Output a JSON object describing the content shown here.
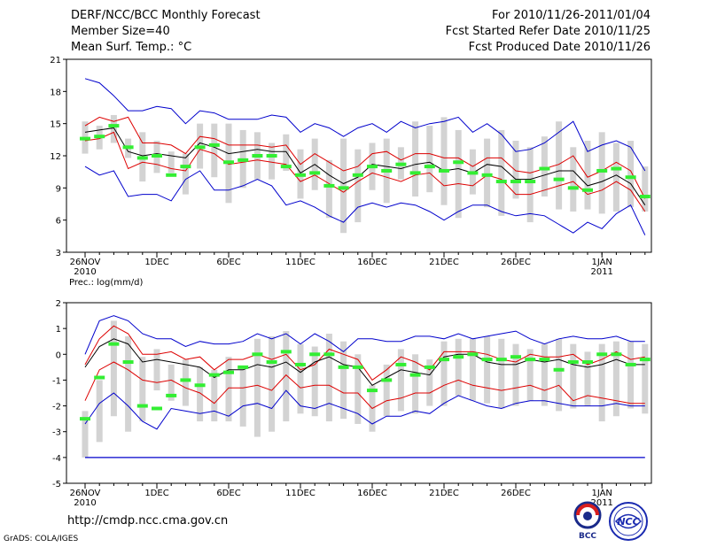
{
  "header": {
    "title": "DERF/NCC/BCC Monthly Forecast",
    "member_size": "Member Size=40",
    "variable": "Mean Surf. Temp.: °C",
    "forecast_period": "For 2010/11/26-2011/01/04",
    "refer_date": "Fcst Started Refer Date 2010/11/25",
    "produced_date": "Fcst Produced Date 2010/11/26"
  },
  "footer": {
    "url": "http://cmdp.ncc.cma.gov.cn",
    "credit": "GrADS: COLA/IGES",
    "logo_bcc": "BCC",
    "logo_ncc": "NCC"
  },
  "colors": {
    "band": "#d3d3d3",
    "mean": "#000000",
    "envelope_outer": "#0000cc",
    "envelope_inner": "#dd0000",
    "median": "#33ee33"
  },
  "chart_data": [
    {
      "type": "line",
      "panel": "temperature",
      "title": "",
      "ylabel": "",
      "ylim": [
        3,
        21
      ],
      "yticks": [
        3,
        6,
        9,
        12,
        15,
        18,
        21
      ],
      "xtick_labels": [
        "26NOV",
        "1DEC",
        "6DEC",
        "11DEC",
        "16DEC",
        "21DEC",
        "26DEC",
        "1JAN"
      ],
      "xtick_days": [
        0,
        5,
        10,
        15,
        20,
        25,
        30,
        36
      ],
      "year_labels": [
        {
          "day": 0,
          "label": "2010"
        },
        {
          "day": 36,
          "label": "2011"
        }
      ],
      "days": [
        0,
        1,
        2,
        3,
        4,
        5,
        6,
        7,
        8,
        9,
        10,
        11,
        12,
        13,
        14,
        15,
        16,
        17,
        18,
        19,
        20,
        21,
        22,
        23,
        24,
        25,
        26,
        27,
        28,
        29,
        30,
        31,
        32,
        33,
        34,
        35,
        36,
        37,
        38,
        39
      ],
      "series": [
        {
          "name": "max",
          "values": [
            19.2,
            18.8,
            17.6,
            16.2,
            16.2,
            16.6,
            16.4,
            15.0,
            16.2,
            16.0,
            15.4,
            15.4,
            15.4,
            15.8,
            15.6,
            14.2,
            15.0,
            14.6,
            13.8,
            14.6,
            15.0,
            14.2,
            15.2,
            14.6,
            15.0,
            15.2,
            15.6,
            14.2,
            15.0,
            14.0,
            12.4,
            12.6,
            13.2,
            14.2,
            15.2,
            12.4,
            13.0,
            13.4,
            12.8,
            10.6
          ]
        },
        {
          "name": "upper",
          "values": [
            14.8,
            15.6,
            15.2,
            15.6,
            13.2,
            13.2,
            13.0,
            12.2,
            13.8,
            13.6,
            13.0,
            13.0,
            13.0,
            12.8,
            13.0,
            11.2,
            12.2,
            11.4,
            10.6,
            11.0,
            12.2,
            12.4,
            11.6,
            12.2,
            12.2,
            11.8,
            11.8,
            11.0,
            11.8,
            11.8,
            10.6,
            10.4,
            10.8,
            11.2,
            12.0,
            10.0,
            10.6,
            11.4,
            10.6,
            8.0
          ]
        },
        {
          "name": "mean",
          "values": [
            14.2,
            14.4,
            14.6,
            12.4,
            12.0,
            12.2,
            12.0,
            11.8,
            13.2,
            12.8,
            12.2,
            12.4,
            12.6,
            12.4,
            12.4,
            10.4,
            11.2,
            10.2,
            9.4,
            10.0,
            11.2,
            11.0,
            10.8,
            11.2,
            11.4,
            10.6,
            10.8,
            10.4,
            11.2,
            11.0,
            9.8,
            9.8,
            10.2,
            10.6,
            10.6,
            9.2,
            9.6,
            10.2,
            9.4,
            7.4
          ]
        },
        {
          "name": "lower",
          "values": [
            13.4,
            13.6,
            14.2,
            10.8,
            11.4,
            11.2,
            10.8,
            10.6,
            12.6,
            12.2,
            11.2,
            11.4,
            11.6,
            11.4,
            11.2,
            9.6,
            10.2,
            9.4,
            8.6,
            9.6,
            10.4,
            10.0,
            9.6,
            10.2,
            10.4,
            9.2,
            9.4,
            9.2,
            10.2,
            9.8,
            8.4,
            8.4,
            8.8,
            9.2,
            9.6,
            8.4,
            8.8,
            9.6,
            8.8,
            6.8
          ]
        },
        {
          "name": "min",
          "values": [
            11.0,
            10.2,
            10.6,
            8.2,
            8.4,
            8.4,
            7.8,
            9.8,
            10.6,
            8.8,
            8.8,
            9.2,
            9.8,
            9.2,
            7.4,
            7.8,
            7.2,
            6.4,
            5.8,
            7.2,
            7.6,
            7.2,
            7.6,
            7.4,
            6.8,
            6.0,
            6.8,
            7.4,
            7.4,
            6.8,
            6.4,
            6.6,
            6.4,
            5.6,
            4.8,
            5.8,
            5.2,
            6.6,
            7.4,
            4.6
          ]
        }
      ],
      "bands": {
        "label": "member spread (grey bars)",
        "low": [
          12.2,
          12.6,
          13.2,
          11.8,
          9.6,
          10.4,
          10.4,
          8.4,
          10.8,
          10.0,
          7.6,
          9.0,
          9.8,
          9.8,
          10.6,
          8.0,
          8.8,
          6.2,
          4.8,
          5.8,
          8.8,
          7.6,
          9.8,
          8.2,
          8.6,
          7.4,
          6.2,
          8.4,
          7.2,
          6.4,
          8.0,
          5.8,
          8.2,
          7.0,
          6.8,
          7.0,
          6.6,
          6.8,
          7.2,
          6.8
        ],
        "high": [
          15.2,
          14.8,
          15.8,
          13.6,
          14.2,
          13.4,
          12.4,
          12.2,
          15.0,
          15.0,
          15.0,
          14.4,
          14.2,
          13.2,
          14.0,
          12.6,
          13.6,
          11.6,
          13.6,
          12.6,
          13.2,
          13.6,
          12.8,
          15.2,
          14.8,
          15.6,
          14.4,
          12.6,
          13.6,
          14.4,
          13.4,
          12.8,
          13.8,
          15.2,
          12.8,
          13.4,
          14.2,
          13.2,
          13.4,
          11.0
        ]
      },
      "medians": [
        13.6,
        13.8,
        14.8,
        12.8,
        11.8,
        12.0,
        10.2,
        11.0,
        12.8,
        13.0,
        11.4,
        11.6,
        12.0,
        12.0,
        11.0,
        10.2,
        10.4,
        9.2,
        9.0,
        10.2,
        11.0,
        10.6,
        11.2,
        10.4,
        11.0,
        10.6,
        11.4,
        10.4,
        10.2,
        9.6,
        9.6,
        9.6,
        10.8,
        9.8,
        9.0,
        8.8,
        10.6,
        10.8,
        10.0,
        8.2
      ]
    },
    {
      "type": "line",
      "panel": "precipitation",
      "title": "Prec.: log(mm/d)",
      "ylabel": "",
      "ylim": [
        -5,
        2
      ],
      "yticks": [
        -5,
        -4,
        -3,
        -2,
        -1,
        0,
        1,
        2
      ],
      "xtick_labels": [
        "26NOV",
        "1DEC",
        "6DEC",
        "11DEC",
        "16DEC",
        "21DEC",
        "26DEC",
        "1JAN"
      ],
      "xtick_days": [
        0,
        5,
        10,
        15,
        20,
        25,
        30,
        36
      ],
      "year_labels": [
        {
          "day": 0,
          "label": "2010"
        },
        {
          "day": 36,
          "label": "2011"
        }
      ],
      "days": [
        0,
        1,
        2,
        3,
        4,
        5,
        6,
        7,
        8,
        9,
        10,
        11,
        12,
        13,
        14,
        15,
        16,
        17,
        18,
        19,
        20,
        21,
        22,
        23,
        24,
        25,
        26,
        27,
        28,
        29,
        30,
        31,
        32,
        33,
        34,
        35,
        36,
        37,
        38,
        39
      ],
      "baseline": -4,
      "series": [
        {
          "name": "max",
          "values": [
            0.0,
            1.3,
            1.5,
            1.3,
            0.8,
            0.6,
            0.6,
            0.3,
            0.5,
            0.4,
            0.4,
            0.5,
            0.8,
            0.6,
            0.8,
            0.4,
            0.8,
            0.5,
            0.1,
            0.6,
            0.6,
            0.5,
            0.5,
            0.7,
            0.7,
            0.6,
            0.8,
            0.6,
            0.7,
            0.8,
            0.9,
            0.6,
            0.4,
            0.6,
            0.7,
            0.6,
            0.6,
            0.7,
            0.5,
            0.5
          ]
        },
        {
          "name": "upper",
          "values": [
            -0.4,
            0.6,
            1.1,
            0.8,
            0.0,
            0.0,
            0.1,
            -0.2,
            -0.1,
            -0.6,
            -0.2,
            -0.2,
            0.0,
            -0.2,
            0.0,
            -0.6,
            -0.4,
            0.2,
            0.0,
            -0.2,
            -1.0,
            -0.6,
            -0.1,
            -0.3,
            -0.6,
            0.1,
            0.1,
            0.1,
            0.0,
            -0.2,
            -0.3,
            0.0,
            -0.1,
            -0.1,
            0.0,
            -0.4,
            -0.2,
            0.1,
            -0.2,
            -0.1
          ]
        },
        {
          "name": "mean",
          "values": [
            -0.5,
            0.3,
            0.6,
            0.4,
            -0.3,
            -0.2,
            -0.3,
            -0.4,
            -0.5,
            -0.9,
            -0.6,
            -0.6,
            -0.4,
            -0.5,
            -0.3,
            -0.7,
            -0.3,
            -0.1,
            -0.4,
            -0.5,
            -1.2,
            -0.9,
            -0.6,
            -0.7,
            -0.8,
            -0.1,
            0.0,
            0.0,
            -0.3,
            -0.4,
            -0.4,
            -0.2,
            -0.3,
            -0.2,
            -0.4,
            -0.5,
            -0.4,
            -0.2,
            -0.4,
            -0.4
          ]
        },
        {
          "name": "lower",
          "values": [
            -1.8,
            -0.6,
            -0.3,
            -0.6,
            -1.0,
            -1.1,
            -1.0,
            -1.3,
            -1.5,
            -1.9,
            -1.3,
            -1.3,
            -1.2,
            -1.4,
            -0.8,
            -1.3,
            -1.2,
            -1.2,
            -1.5,
            -1.5,
            -2.1,
            -1.8,
            -1.7,
            -1.5,
            -1.5,
            -1.2,
            -1.0,
            -1.2,
            -1.3,
            -1.4,
            -1.3,
            -1.2,
            -1.4,
            -1.2,
            -1.8,
            -1.6,
            -1.7,
            -1.8,
            -1.9,
            -1.9
          ]
        },
        {
          "name": "min",
          "values": [
            -2.7,
            -1.9,
            -1.5,
            -2.0,
            -2.6,
            -2.9,
            -2.1,
            -2.2,
            -2.3,
            -2.2,
            -2.4,
            -2.0,
            -1.9,
            -2.1,
            -1.4,
            -2.0,
            -2.1,
            -1.9,
            -2.1,
            -2.3,
            -2.7,
            -2.4,
            -2.4,
            -2.2,
            -2.3,
            -1.9,
            -1.6,
            -1.8,
            -2.0,
            -2.1,
            -1.9,
            -1.8,
            -1.8,
            -1.9,
            -2.0,
            -2.0,
            -2.0,
            -1.9,
            -2.0,
            -2.0
          ]
        }
      ],
      "bands": {
        "label": "member spread (grey bars)",
        "low": [
          -4.0,
          -3.4,
          -2.4,
          -3.0,
          -2.6,
          -1.4,
          -1.8,
          -2.0,
          -2.6,
          -2.6,
          -2.6,
          -2.8,
          -3.2,
          -3.0,
          -2.6,
          -2.3,
          -2.4,
          -2.6,
          -2.5,
          -2.7,
          -3.0,
          -2.4,
          -2.2,
          -2.3,
          -2.0,
          -2.0,
          -1.6,
          -1.8,
          -1.9,
          -2.1,
          -2.0,
          -1.8,
          -2.0,
          -2.2,
          -2.1,
          -2.0,
          -2.6,
          -2.4,
          -2.1,
          -2.3
        ],
        "high": [
          -2.2,
          -1.0,
          1.3,
          0.7,
          -0.1,
          0.2,
          -0.4,
          -0.2,
          -0.5,
          -0.6,
          -0.1,
          -0.6,
          0.6,
          0.7,
          0.9,
          0.4,
          0.3,
          0.8,
          0.5,
          0.0,
          -1.2,
          -0.4,
          0.2,
          0.0,
          -0.2,
          0.5,
          0.6,
          0.6,
          0.7,
          0.6,
          0.4,
          0.2,
          0.4,
          0.6,
          0.4,
          0.1,
          0.4,
          0.5,
          0.5,
          0.4
        ]
      },
      "medians": [
        -2.5,
        -0.9,
        0.4,
        -0.3,
        -2.0,
        -2.1,
        -1.6,
        -1.0,
        -1.2,
        -0.8,
        -0.7,
        -0.5,
        0.0,
        -0.3,
        0.1,
        -0.4,
        0.0,
        0.0,
        -0.5,
        -0.5,
        -1.4,
        -1.0,
        -0.4,
        -0.8,
        -0.5,
        -0.2,
        -0.1,
        0.0,
        -0.2,
        -0.2,
        -0.1,
        -0.2,
        -0.2,
        -0.6,
        -0.3,
        -0.3,
        0.0,
        0.0,
        -0.4,
        -0.2
      ]
    }
  ]
}
